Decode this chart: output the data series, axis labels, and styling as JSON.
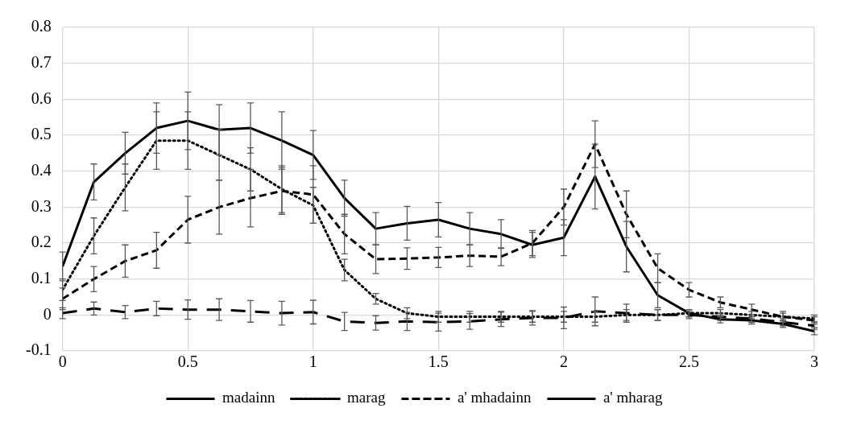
{
  "chart_data": {
    "type": "line",
    "x": [
      0,
      0.125,
      0.25,
      0.375,
      0.5,
      0.625,
      0.75,
      0.875,
      1,
      1.125,
      1.25,
      1.375,
      1.5,
      1.625,
      1.75,
      1.875,
      2,
      2.125,
      2.25,
      2.375,
      2.5,
      2.625,
      2.75,
      2.875,
      3
    ],
    "series": [
      {
        "name": "madainn",
        "color": "#000000",
        "line_style": "solid",
        "values": [
          0.135,
          0.37,
          0.45,
          0.52,
          0.54,
          0.515,
          0.52,
          0.485,
          0.445,
          0.325,
          0.24,
          0.255,
          0.265,
          0.24,
          0.225,
          0.195,
          0.215,
          0.385,
          0.19,
          0.055,
          0.005,
          -0.012,
          -0.015,
          -0.025,
          -0.045
        ],
        "errors": [
          0.04,
          0.05,
          0.058,
          0.07,
          0.08,
          0.07,
          0.07,
          0.08,
          0.068,
          0.05,
          0.045,
          0.047,
          0.048,
          0.045,
          0.04,
          0.035,
          0.05,
          0.09,
          0.07,
          0.035,
          0.01,
          0.01,
          0.01,
          0.01,
          0.01
        ]
      },
      {
        "name": "marag",
        "color": "#000000",
        "line_style": "dotted",
        "values": [
          0.07,
          0.22,
          0.355,
          0.485,
          0.485,
          0.445,
          0.405,
          0.35,
          0.305,
          0.125,
          0.045,
          0.005,
          -0.005,
          -0.005,
          -0.005,
          -0.005,
          -0.005,
          -0.005,
          0,
          0,
          0.005,
          0.005,
          0,
          -0.005,
          -0.01
        ],
        "errors": [
          0.03,
          0.05,
          0.065,
          0.08,
          0.08,
          0.07,
          0.06,
          0.065,
          0.05,
          0.03,
          0.015,
          0.015,
          0.015,
          0.015,
          0.015,
          0.015,
          0.015,
          0.015,
          0.015,
          0.015,
          0.01,
          0.01,
          0.01,
          0.01,
          0.01
        ]
      },
      {
        "name": "a' mhadainn",
        "color": "#000000",
        "line_style": "dashed",
        "values": [
          0.045,
          0.1,
          0.15,
          0.18,
          0.265,
          0.3,
          0.325,
          0.345,
          0.335,
          0.225,
          0.155,
          0.157,
          0.16,
          0.165,
          0.162,
          0.2,
          0.3,
          0.475,
          0.28,
          0.13,
          0.07,
          0.035,
          0.015,
          -0.005,
          -0.015
        ],
        "errors": [
          0.03,
          0.035,
          0.045,
          0.05,
          0.065,
          0.075,
          0.08,
          0.065,
          0.08,
          0.055,
          0.04,
          0.03,
          0.028,
          0.03,
          0.025,
          0.035,
          0.05,
          0.065,
          0.065,
          0.04,
          0.02,
          0.015,
          0.015,
          0.015,
          0.01
        ]
      },
      {
        "name": "a' mharag",
        "color": "#000000",
        "line_style": "long-dashed",
        "values": [
          0.005,
          0.018,
          0.008,
          0.018,
          0.015,
          0.015,
          0.01,
          0.005,
          0.008,
          -0.018,
          -0.022,
          -0.018,
          -0.02,
          -0.018,
          -0.012,
          -0.008,
          -0.008,
          0.01,
          0.005,
          0,
          0,
          -0.005,
          -0.01,
          -0.02,
          -0.03
        ],
        "errors": [
          0.015,
          0.018,
          0.018,
          0.02,
          0.027,
          0.03,
          0.03,
          0.033,
          0.033,
          0.025,
          0.02,
          0.025,
          0.025,
          0.022,
          0.02,
          0.02,
          0.03,
          0.04,
          0.025,
          0.015,
          0.01,
          0.01,
          0.01,
          0.01,
          0.01
        ]
      }
    ],
    "xlim": [
      0,
      3
    ],
    "xticks": [
      0,
      0.5,
      1,
      1.5,
      2,
      2.5,
      3
    ],
    "ylim": [
      -0.1,
      0.8
    ],
    "yticks": [
      -0.1,
      0,
      0.1,
      0.2,
      0.3,
      0.4,
      0.5,
      0.6,
      0.7,
      0.8
    ],
    "grid": true,
    "legend": "bottom",
    "marker": "none"
  }
}
